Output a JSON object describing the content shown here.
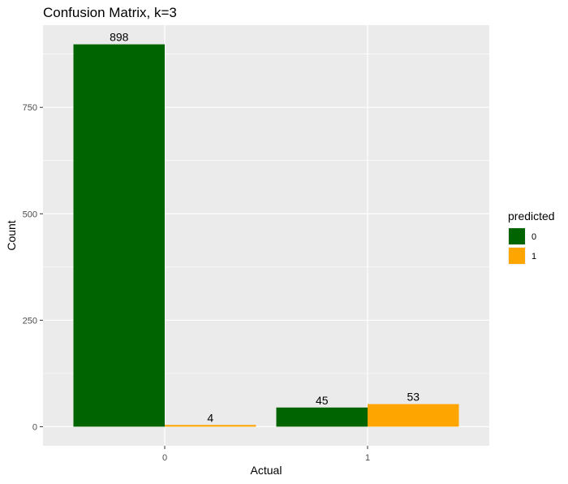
{
  "chart_data": {
    "type": "bar",
    "title": "Confusion Matrix, k=3",
    "xlabel": "Actual",
    "ylabel": "Count",
    "categories": [
      "0",
      "1"
    ],
    "series": [
      {
        "name": "0",
        "values": [
          898,
          45
        ],
        "color": "#006400"
      },
      {
        "name": "1",
        "values": [
          4,
          53
        ],
        "color": "#FFA500"
      }
    ],
    "yticks": [
      0,
      250,
      500,
      750
    ],
    "ylim": [
      -45,
      943
    ],
    "grid": true,
    "legend": {
      "title": "predicted",
      "placement": "right"
    },
    "data_labels": true
  }
}
